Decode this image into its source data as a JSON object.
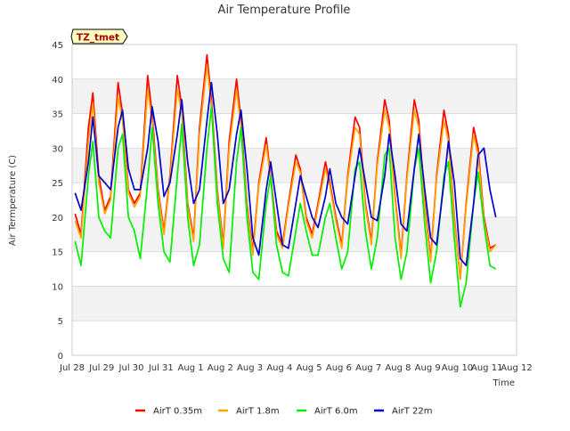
{
  "chart_data": {
    "type": "line",
    "title": "Air Temperature Profile",
    "xlabel": "Time",
    "ylabel": "Air Termperature (C)",
    "site_label": "TZ_tmet",
    "ylim": [
      0,
      45
    ],
    "yticks": [
      0,
      5,
      10,
      15,
      20,
      25,
      30,
      35,
      40,
      45
    ],
    "xlim": [
      0,
      15
    ],
    "xticks": [
      {
        "pos": 0,
        "label": "Jul 28"
      },
      {
        "pos": 1,
        "label": "Jul 29"
      },
      {
        "pos": 2,
        "label": "Jul 30"
      },
      {
        "pos": 3,
        "label": "Jul 31"
      },
      {
        "pos": 4,
        "label": "Aug 1"
      },
      {
        "pos": 5,
        "label": "Aug 2"
      },
      {
        "pos": 6,
        "label": "Aug 3"
      },
      {
        "pos": 7,
        "label": "Aug 4"
      },
      {
        "pos": 8,
        "label": "Aug 5"
      },
      {
        "pos": 9,
        "label": "Aug 6"
      },
      {
        "pos": 10,
        "label": "Aug 7"
      },
      {
        "pos": 11,
        "label": "Aug 8"
      },
      {
        "pos": 12,
        "label": "Aug 9"
      },
      {
        "pos": 13,
        "label": "Aug 10"
      },
      {
        "pos": 14,
        "label": "Aug 11"
      },
      {
        "pos": 15,
        "label": "Aug 12"
      }
    ],
    "x_units": "days since Jul 28 00:00",
    "grid": true,
    "legend_position": "bottom",
    "series": [
      {
        "name": "AirT 0.35m",
        "color": "#ff0000",
        "x": [
          0.1,
          0.3,
          0.55,
          0.7,
          0.9,
          1.1,
          1.3,
          1.55,
          1.7,
          1.9,
          2.1,
          2.3,
          2.55,
          2.7,
          2.9,
          3.1,
          3.3,
          3.55,
          3.7,
          3.9,
          4.1,
          4.3,
          4.55,
          4.7,
          4.9,
          5.1,
          5.3,
          5.55,
          5.7,
          5.9,
          6.1,
          6.3,
          6.55,
          6.7,
          6.9,
          7.1,
          7.3,
          7.55,
          7.7,
          7.9,
          8.1,
          8.3,
          8.55,
          8.7,
          8.9,
          9.1,
          9.3,
          9.55,
          9.7,
          9.9,
          10.1,
          10.3,
          10.55,
          10.7,
          10.9,
          11.1,
          11.3,
          11.55,
          11.7,
          11.9,
          12.1,
          12.3,
          12.55,
          12.7,
          12.9,
          13.1,
          13.3,
          13.55,
          13.7,
          13.9,
          14.1,
          14.3
        ],
        "y": [
          20.5,
          17.5,
          33,
          38,
          26,
          21,
          23,
          39.5,
          35,
          24,
          22,
          23.5,
          40.5,
          35,
          24,
          18,
          26,
          40.5,
          36,
          22,
          17,
          33,
          43.5,
          37,
          24,
          16,
          31,
          40,
          34,
          22,
          15,
          25,
          31.5,
          26,
          18,
          16,
          22,
          29,
          27,
          20,
          17.5,
          22,
          28,
          25,
          20,
          16,
          26,
          34.5,
          33,
          22,
          16.5,
          28,
          37,
          34,
          23,
          14.5,
          26,
          37,
          34,
          22,
          14,
          26,
          35.5,
          32,
          20,
          11,
          22,
          33,
          30,
          20,
          15.5,
          16
        ]
      },
      {
        "name": "AirT 1.8m",
        "color": "#ffa500",
        "x": [
          0.1,
          0.3,
          0.55,
          0.7,
          0.9,
          1.1,
          1.3,
          1.55,
          1.7,
          1.9,
          2.1,
          2.3,
          2.55,
          2.7,
          2.9,
          3.1,
          3.3,
          3.55,
          3.7,
          3.9,
          4.1,
          4.3,
          4.55,
          4.7,
          4.9,
          5.1,
          5.3,
          5.55,
          5.7,
          5.9,
          6.1,
          6.3,
          6.55,
          6.7,
          6.9,
          7.1,
          7.3,
          7.55,
          7.7,
          7.9,
          8.1,
          8.3,
          8.55,
          8.7,
          8.9,
          9.1,
          9.3,
          9.55,
          9.7,
          9.9,
          10.1,
          10.3,
          10.55,
          10.7,
          10.9,
          11.1,
          11.3,
          11.55,
          11.7,
          11.9,
          12.1,
          12.3,
          12.55,
          12.7,
          12.9,
          13.1,
          13.3,
          13.55,
          13.7,
          13.9,
          14.1,
          14.3
        ],
        "y": [
          19.5,
          17,
          31,
          36.5,
          25,
          20.5,
          22.5,
          37.5,
          34,
          23.5,
          21.5,
          23,
          38.5,
          34,
          23.5,
          17.5,
          25.5,
          38.5,
          35,
          21.5,
          16.5,
          32,
          42,
          36,
          23.5,
          15.5,
          30,
          38.5,
          33,
          21.5,
          14.5,
          24.5,
          30.5,
          25.5,
          17.5,
          15.5,
          21.5,
          28,
          26.5,
          19.5,
          17,
          21.5,
          27,
          24.5,
          19.5,
          15.5,
          25.5,
          33,
          32,
          21.5,
          16,
          27.5,
          35.5,
          33,
          22.5,
          14,
          25.5,
          35.5,
          33,
          21.5,
          13.5,
          25.5,
          34,
          31,
          19.5,
          11,
          21.5,
          32,
          29,
          19.5,
          15,
          16
        ]
      },
      {
        "name": "AirT 6.0m",
        "color": "#00ee00",
        "x": [
          0.1,
          0.3,
          0.55,
          0.7,
          0.9,
          1.1,
          1.3,
          1.55,
          1.7,
          1.9,
          2.1,
          2.3,
          2.55,
          2.7,
          2.9,
          3.1,
          3.3,
          3.55,
          3.7,
          3.9,
          4.1,
          4.3,
          4.55,
          4.7,
          4.9,
          5.1,
          5.3,
          5.55,
          5.7,
          5.9,
          6.1,
          6.3,
          6.55,
          6.7,
          6.9,
          7.1,
          7.3,
          7.55,
          7.7,
          7.9,
          8.1,
          8.3,
          8.55,
          8.7,
          8.9,
          9.1,
          9.3,
          9.55,
          9.7,
          9.9,
          10.1,
          10.3,
          10.55,
          10.7,
          10.9,
          11.1,
          11.3,
          11.55,
          11.7,
          11.9,
          12.1,
          12.3,
          12.55,
          12.7,
          12.9,
          13.1,
          13.3,
          13.55,
          13.7,
          13.9,
          14.1,
          14.3
        ],
        "y": [
          16.5,
          13,
          26,
          31,
          20,
          18,
          17,
          30,
          32,
          20,
          18,
          14,
          25,
          33,
          22,
          15,
          13.5,
          26,
          33.5,
          20,
          13,
          16,
          30,
          36,
          22,
          14,
          12,
          28,
          33,
          20,
          12,
          11,
          22,
          26,
          16,
          12,
          11.5,
          18,
          22,
          18,
          14.5,
          14.5,
          20,
          22,
          17,
          12.5,
          15,
          27,
          28,
          18,
          12.5,
          17,
          29,
          30,
          17,
          11,
          15,
          27,
          30,
          19,
          10.5,
          15,
          26,
          28,
          17,
          7,
          10.5,
          22,
          26.5,
          19,
          13,
          12.5
        ]
      },
      {
        "name": "AirT 22m",
        "color": "#0000cc",
        "x": [
          0.1,
          0.3,
          0.55,
          0.7,
          0.9,
          1.1,
          1.3,
          1.55,
          1.7,
          1.9,
          2.1,
          2.3,
          2.55,
          2.7,
          2.9,
          3.1,
          3.3,
          3.55,
          3.7,
          3.9,
          4.1,
          4.3,
          4.55,
          4.7,
          4.9,
          5.1,
          5.3,
          5.55,
          5.7,
          5.9,
          6.1,
          6.3,
          6.55,
          6.7,
          6.9,
          7.1,
          7.3,
          7.55,
          7.7,
          7.9,
          8.1,
          8.3,
          8.55,
          8.7,
          8.9,
          9.1,
          9.3,
          9.55,
          9.7,
          9.9,
          10.1,
          10.3,
          10.55,
          10.7,
          10.9,
          11.1,
          11.3,
          11.55,
          11.7,
          11.9,
          12.1,
          12.3,
          12.55,
          12.7,
          12.9,
          13.1,
          13.3,
          13.55,
          13.7,
          13.9,
          14.1,
          14.3
        ],
        "y": [
          23.5,
          21,
          28,
          34.5,
          26,
          25,
          24,
          33,
          35.5,
          27,
          24,
          24,
          30,
          36,
          31,
          23,
          25,
          32,
          37,
          28,
          22,
          24,
          34,
          39.5,
          32,
          22,
          24,
          32,
          35.5,
          27,
          17,
          14.5,
          24,
          28,
          22,
          16,
          15.5,
          22,
          26,
          23,
          20,
          18.5,
          23,
          27,
          22,
          20,
          19,
          26,
          30,
          25,
          20,
          19.5,
          26,
          32,
          26,
          19,
          18,
          27,
          32,
          24,
          17,
          16,
          25,
          31,
          25,
          14,
          13,
          22,
          29,
          30,
          24,
          20
        ]
      }
    ]
  }
}
